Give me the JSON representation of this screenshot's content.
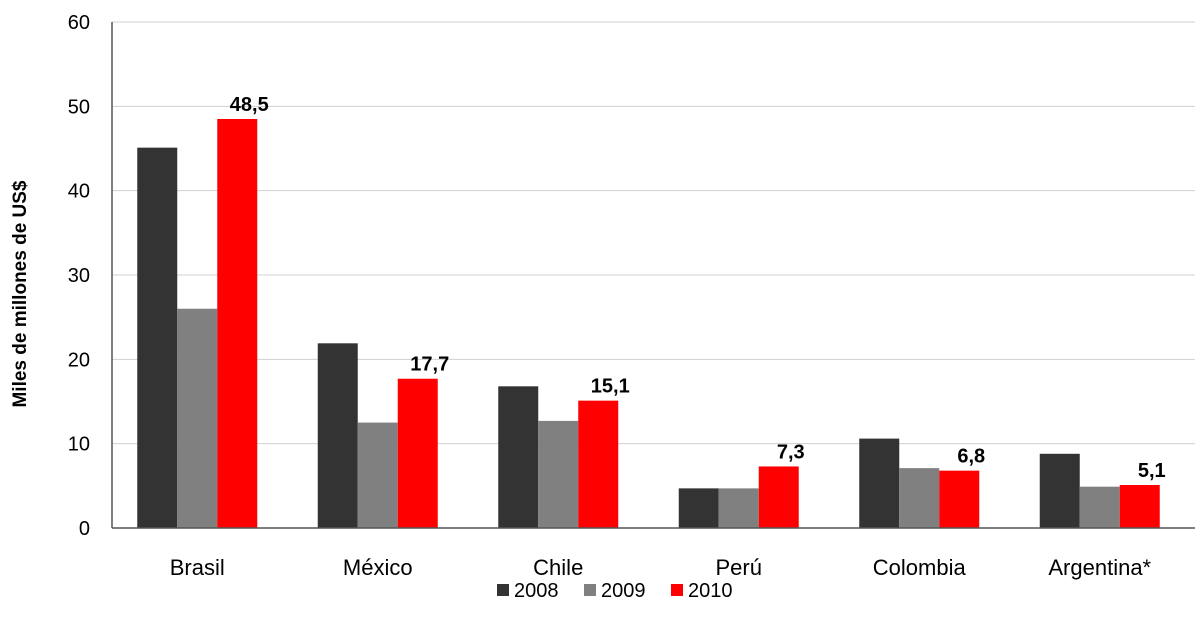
{
  "chart_data": {
    "type": "bar",
    "categories": [
      "Brasil",
      "México",
      "Chile",
      "Perú",
      "Colombia",
      "Argentina*"
    ],
    "series": [
      {
        "name": "2008",
        "color": "#333333",
        "values": [
          45.1,
          21.9,
          16.8,
          4.7,
          10.6,
          8.8
        ]
      },
      {
        "name": "2009",
        "color": "#808080",
        "values": [
          26.0,
          12.5,
          12.7,
          4.7,
          7.1,
          4.9
        ]
      },
      {
        "name": "2010",
        "color": "#ff0000",
        "values": [
          48.5,
          17.7,
          15.1,
          7.3,
          6.8,
          5.1
        ]
      }
    ],
    "data_labels": {
      "series": "2010",
      "texts": [
        "48,5",
        "17,7",
        "15,1",
        "7,3",
        "6,8",
        "5,1"
      ]
    },
    "title": "",
    "xlabel": "",
    "ylabel": "Miles de millones de US$",
    "ylim": [
      0,
      60
    ],
    "yticks": [
      0,
      10,
      20,
      30,
      40,
      50,
      60
    ],
    "grid": "horizontal",
    "legend_position": "bottom"
  }
}
